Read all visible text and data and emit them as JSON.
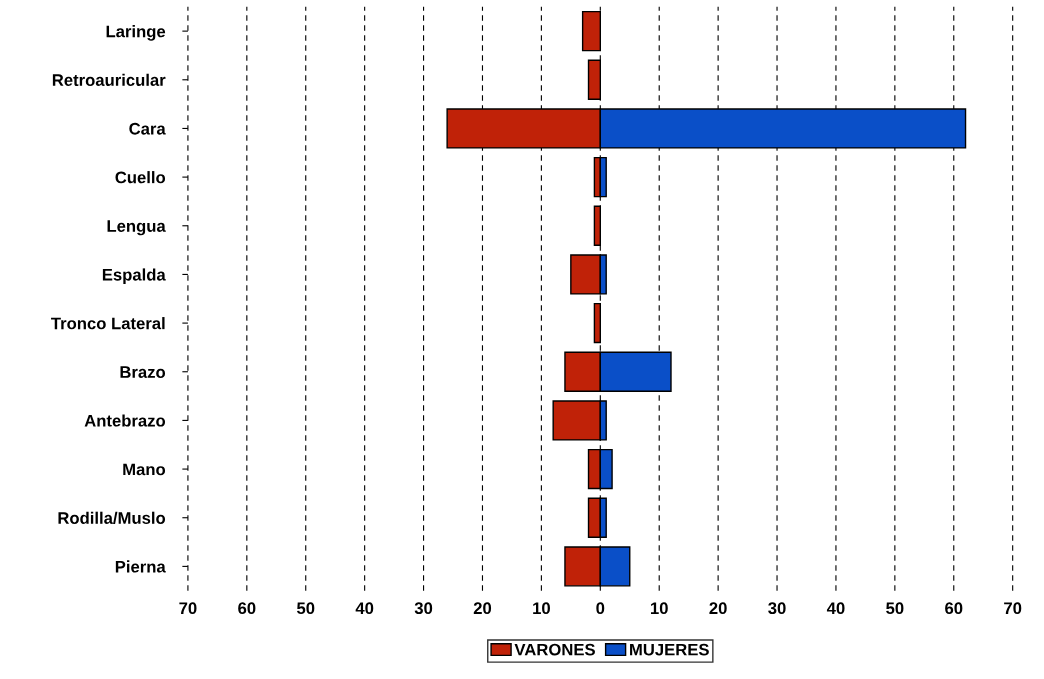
{
  "chart_data": {
    "type": "bar",
    "orientation": "horizontal",
    "categories": [
      "Laringe",
      "Retroauricular",
      "Cara",
      "Cuello",
      "Lengua",
      "Espalda",
      "Tronco Lateral",
      "Brazo",
      "Antebrazo",
      "Mano",
      "Rodilla/Muslo",
      "Pierna"
    ],
    "series": [
      {
        "name": "VARONES",
        "color": "#c02208",
        "values": [
          -3,
          -2,
          -26,
          -1,
          -1,
          -5,
          -1,
          -6,
          -8,
          -2,
          -2,
          -6
        ]
      },
      {
        "name": "MUJERES",
        "color": "#0a4fc8",
        "values": [
          null,
          null,
          62,
          1,
          null,
          1,
          null,
          12,
          1,
          2,
          1,
          5
        ]
      }
    ],
    "xlim": [
      -70,
      70
    ],
    "stacked": true,
    "xticks": [
      {
        "value": -70,
        "label": "70"
      },
      {
        "value": -60,
        "label": "60"
      },
      {
        "value": -50,
        "label": "50"
      },
      {
        "value": -40,
        "label": "40"
      },
      {
        "value": -30,
        "label": "30"
      },
      {
        "value": -20,
        "label": "20"
      },
      {
        "value": -10,
        "label": "10"
      },
      0,
      10,
      20,
      30,
      40,
      50,
      60,
      70
    ],
    "grid": "x",
    "legend": "bottom"
  }
}
